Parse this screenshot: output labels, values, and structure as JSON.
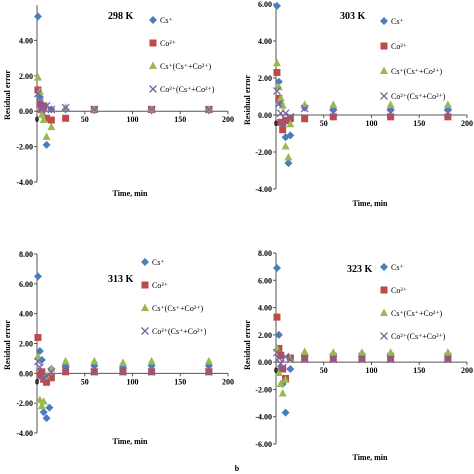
{
  "figure_label": "b",
  "legend_labels": {
    "cs": "Cs⁺",
    "co": "Co²⁺",
    "cs_mix": "Cs⁺(Cs⁺+Co²⁺)",
    "co_mix": "Co²⁺(Cs⁺+Co²⁺)"
  },
  "colors": {
    "cs": "#4a7ebb",
    "co": "#be4b48",
    "cs_mix": "#98b954",
    "co_mix": "#7d60a0"
  },
  "chart_data": [
    {
      "type": "scatter",
      "title": "298 K",
      "xlabel": "Time, min",
      "ylabel": "Residual error",
      "xlim": [
        0,
        200
      ],
      "ylim": [
        -4,
        6
      ],
      "xticks": [
        "0",
        "50",
        "100",
        "150",
        "200"
      ],
      "yticks": [
        "-4.00",
        "-2.00",
        "0.00",
        "2.00",
        "4.00"
      ],
      "series": [
        {
          "name": "Cs⁺",
          "marker": "diamond",
          "points": [
            [
              1,
              5.35
            ],
            [
              3,
              0.8
            ],
            [
              5,
              0.2
            ],
            [
              7,
              -0.3
            ],
            [
              10,
              -1.9
            ],
            [
              15,
              0.1
            ],
            [
              30,
              0.1
            ],
            [
              60,
              0.05
            ],
            [
              120,
              0.05
            ],
            [
              180,
              0.05
            ]
          ]
        },
        {
          "name": "Co²⁺",
          "marker": "square",
          "points": [
            [
              1,
              1.2
            ],
            [
              3,
              0.4
            ],
            [
              5,
              0.1
            ],
            [
              7,
              0.3
            ],
            [
              10,
              -0.4
            ],
            [
              15,
              -0.5
            ],
            [
              30,
              -0.4
            ],
            [
              60,
              0.1
            ],
            [
              120,
              0.1
            ],
            [
              180,
              0.1
            ]
          ]
        },
        {
          "name": "Cs⁺(Cs⁺+Co²⁺)",
          "marker": "triangle",
          "points": [
            [
              1,
              1.9
            ],
            [
              3,
              1.1
            ],
            [
              5,
              -0.2
            ],
            [
              7,
              -0.5
            ],
            [
              10,
              -1.45
            ],
            [
              15,
              -0.9
            ],
            [
              30,
              0.2
            ],
            [
              60,
              0.1
            ],
            [
              120,
              0.1
            ],
            [
              180,
              0.1
            ]
          ]
        },
        {
          "name": "Co²⁺(Cs⁺+Co²⁺)",
          "marker": "x",
          "points": [
            [
              1,
              1.0
            ],
            [
              3,
              0.5
            ],
            [
              5,
              0.1
            ],
            [
              7,
              0.2
            ],
            [
              10,
              0.3
            ],
            [
              15,
              0.1
            ],
            [
              30,
              0.2
            ],
            [
              60,
              0.1
            ],
            [
              120,
              0.1
            ],
            [
              180,
              0.1
            ]
          ]
        }
      ]
    },
    {
      "type": "scatter",
      "title": "303 K",
      "xlabel": "Time, min",
      "ylabel": "Residual error",
      "xlim": [
        0,
        200
      ],
      "ylim": [
        -4,
        6
      ],
      "xticks": [
        "0",
        "50",
        "100",
        "150",
        "200"
      ],
      "yticks": [
        "-4.00",
        "-2.00",
        "0.00",
        "2.00",
        "4.00",
        "6.00"
      ],
      "series": [
        {
          "name": "Cs⁺",
          "marker": "diamond",
          "points": [
            [
              1,
              5.9
            ],
            [
              3,
              1.8
            ],
            [
              5,
              0.6
            ],
            [
              7,
              -0.5
            ],
            [
              10,
              -1.2
            ],
            [
              13,
              -2.6
            ],
            [
              15,
              -1.1
            ],
            [
              30,
              0.4
            ],
            [
              60,
              0.3
            ],
            [
              120,
              0.3
            ],
            [
              180,
              0.3
            ]
          ]
        },
        {
          "name": "Co²⁺",
          "marker": "square",
          "points": [
            [
              1,
              2.3
            ],
            [
              3,
              0.9
            ],
            [
              5,
              -0.4
            ],
            [
              7,
              -0.8
            ],
            [
              10,
              -0.3
            ],
            [
              15,
              -0.2
            ],
            [
              30,
              -0.2
            ],
            [
              60,
              -0.1
            ],
            [
              120,
              -0.1
            ],
            [
              180,
              -0.1
            ]
          ]
        },
        {
          "name": "Cs⁺(Cs⁺+Co²⁺)",
          "marker": "triangle",
          "points": [
            [
              1,
              2.8
            ],
            [
              3,
              1.5
            ],
            [
              5,
              0.9
            ],
            [
              7,
              0.5
            ],
            [
              10,
              -1.7
            ],
            [
              13,
              -2.3
            ],
            [
              15,
              -0.5
            ],
            [
              30,
              0.55
            ],
            [
              60,
              0.55
            ],
            [
              120,
              0.55
            ],
            [
              180,
              0.55
            ]
          ]
        },
        {
          "name": "Co²⁺(Cs⁺+Co²⁺)",
          "marker": "x",
          "points": [
            [
              1,
              1.3
            ],
            [
              3,
              0.6
            ],
            [
              5,
              0.1
            ],
            [
              7,
              -0.4
            ],
            [
              10,
              0.1
            ],
            [
              15,
              -0.1
            ],
            [
              30,
              0.35
            ],
            [
              60,
              0.1
            ],
            [
              120,
              0.1
            ],
            [
              180,
              0.1
            ]
          ]
        }
      ]
    },
    {
      "type": "scatter",
      "title": "313 K",
      "xlabel": "Time, min",
      "ylabel": "Residual error",
      "xlim": [
        0,
        200
      ],
      "ylim": [
        -4,
        8
      ],
      "xticks": [
        "0",
        "50",
        "100",
        "150",
        "200"
      ],
      "yticks": [
        "-4.00",
        "-2.00",
        "0.00",
        "2.00",
        "4.00",
        "6.00",
        "8.00"
      ],
      "series": [
        {
          "name": "Cs⁺",
          "marker": "diamond",
          "points": [
            [
              1,
              6.5
            ],
            [
              3,
              1.5
            ],
            [
              5,
              0.9
            ],
            [
              7,
              -2.6
            ],
            [
              10,
              -3.0
            ],
            [
              13,
              -2.3
            ],
            [
              15,
              0.3
            ],
            [
              30,
              0.5
            ],
            [
              60,
              0.5
            ],
            [
              90,
              0.4
            ],
            [
              120,
              0.5
            ],
            [
              180,
              0.5
            ]
          ]
        },
        {
          "name": "Co²⁺",
          "marker": "square",
          "points": [
            [
              1,
              2.4
            ],
            [
              3,
              -0.1
            ],
            [
              5,
              0.1
            ],
            [
              7,
              -0.4
            ],
            [
              10,
              -0.6
            ],
            [
              15,
              -0.3
            ],
            [
              30,
              0.1
            ],
            [
              60,
              0.1
            ],
            [
              90,
              0.1
            ],
            [
              120,
              0.1
            ],
            [
              180,
              0.1
            ]
          ]
        },
        {
          "name": "Cs⁺(Cs⁺+Co²⁺)",
          "marker": "triangle",
          "points": [
            [
              1,
              1.1
            ],
            [
              3,
              -1.8
            ],
            [
              5,
              -2.2
            ],
            [
              7,
              -1.9
            ],
            [
              10,
              -0.2
            ],
            [
              15,
              0.3
            ],
            [
              30,
              0.8
            ],
            [
              60,
              0.8
            ],
            [
              90,
              0.7
            ],
            [
              120,
              0.8
            ],
            [
              180,
              0.8
            ]
          ]
        },
        {
          "name": "Co²⁺(Cs⁺+Co²⁺)",
          "marker": "x",
          "points": [
            [
              1,
              0.8
            ],
            [
              3,
              0.4
            ],
            [
              5,
              -0.2
            ],
            [
              7,
              -0.3
            ],
            [
              10,
              -0.2
            ],
            [
              15,
              0.1
            ],
            [
              30,
              0.2
            ],
            [
              60,
              0.1
            ],
            [
              90,
              0.1
            ],
            [
              120,
              0.1
            ],
            [
              180,
              0.1
            ]
          ]
        }
      ]
    },
    {
      "type": "scatter",
      "title": "323 K",
      "xlabel": "Time, min",
      "ylabel": "Residual error",
      "xlim": [
        0,
        200
      ],
      "ylim": [
        -6,
        8
      ],
      "xticks": [
        "0",
        "50",
        "100",
        "150",
        "200"
      ],
      "yticks": [
        "-6.00",
        "-4.00",
        "-2.00",
        "0.00",
        "2.00",
        "4.00",
        "6.00",
        "8.00"
      ],
      "series": [
        {
          "name": "Cs⁺",
          "marker": "diamond",
          "points": [
            [
              1,
              6.9
            ],
            [
              3,
              2.0
            ],
            [
              5,
              -0.5
            ],
            [
              7,
              -1.6
            ],
            [
              10,
              -3.7
            ],
            [
              15,
              -0.5
            ],
            [
              30,
              0.5
            ],
            [
              60,
              0.6
            ],
            [
              90,
              0.6
            ],
            [
              120,
              0.6
            ],
            [
              180,
              0.6
            ]
          ]
        },
        {
          "name": "Co²⁺",
          "marker": "square",
          "points": [
            [
              1,
              3.3
            ],
            [
              3,
              1.0
            ],
            [
              5,
              0.5
            ],
            [
              7,
              -0.5
            ],
            [
              10,
              -1.2
            ],
            [
              15,
              0.3
            ],
            [
              30,
              0.3
            ],
            [
              60,
              0.3
            ],
            [
              90,
              0.3
            ],
            [
              120,
              0.3
            ],
            [
              180,
              0.3
            ]
          ]
        },
        {
          "name": "Cs⁺(Cs⁺+Co²⁺)",
          "marker": "triangle",
          "points": [
            [
              1,
              1.0
            ],
            [
              3,
              -0.8
            ],
            [
              5,
              -1.6
            ],
            [
              7,
              -2.3
            ],
            [
              10,
              -1.3
            ],
            [
              15,
              0.2
            ],
            [
              30,
              0.75
            ],
            [
              60,
              0.7
            ],
            [
              90,
              0.7
            ],
            [
              120,
              0.7
            ],
            [
              180,
              0.7
            ]
          ]
        },
        {
          "name": "Co²⁺(Cs⁺+Co²⁺)",
          "marker": "x",
          "points": [
            [
              1,
              0.7
            ],
            [
              3,
              0.3
            ],
            [
              5,
              -0.1
            ],
            [
              7,
              -0.4
            ],
            [
              10,
              0.4
            ],
            [
              15,
              0.2
            ],
            [
              30,
              0.2
            ],
            [
              60,
              0.2
            ],
            [
              90,
              0.2
            ],
            [
              120,
              0.2
            ],
            [
              180,
              0.2
            ]
          ]
        }
      ]
    }
  ]
}
